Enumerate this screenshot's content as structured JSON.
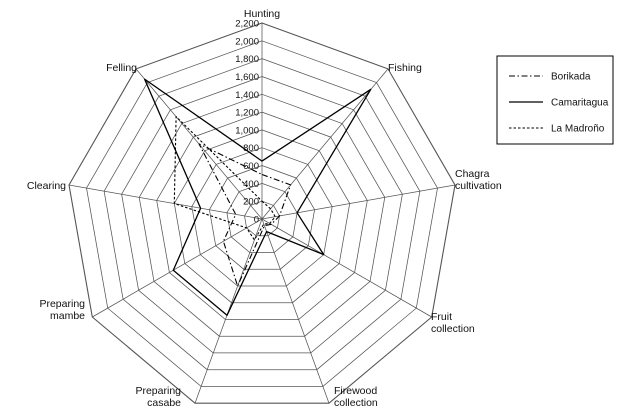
{
  "chart_data": {
    "type": "radar",
    "title": "",
    "axes": [
      [
        "Hunting"
      ],
      [
        "Fishing"
      ],
      [
        "Chagra",
        "cultivation"
      ],
      [
        "Fruit",
        "collection"
      ],
      [
        "Firewood",
        "collection"
      ],
      [
        "Preparing",
        "casabe"
      ],
      [
        "Preparing",
        "mambe"
      ],
      [
        "Clearing"
      ],
      [
        "Felling"
      ]
    ],
    "r_ticks": [
      "0",
      "200",
      "400",
      "600",
      "800",
      "1,000",
      "1,200",
      "1,400",
      "1,600",
      "1,800",
      "2,000",
      "2,200"
    ],
    "r_range": [
      0,
      2200
    ],
    "grid": true,
    "legend_position": "top-right",
    "series": [
      {
        "name": "Borikada",
        "line_style": "dash-dot",
        "values": [
          500,
          500,
          200,
          120,
          80,
          800,
          500,
          300,
          1100
        ]
      },
      {
        "name": "Camaritagua",
        "line_style": "solid",
        "values": [
          650,
          1900,
          400,
          800,
          150,
          1150,
          1150,
          700,
          2050
        ]
      },
      {
        "name": "La Madroño",
        "line_style": "dotted",
        "values": [
          200,
          150,
          150,
          100,
          60,
          250,
          200,
          1000,
          1500
        ]
      }
    ],
    "colors": {
      "lines": "#000000",
      "grid": "#555555"
    }
  }
}
